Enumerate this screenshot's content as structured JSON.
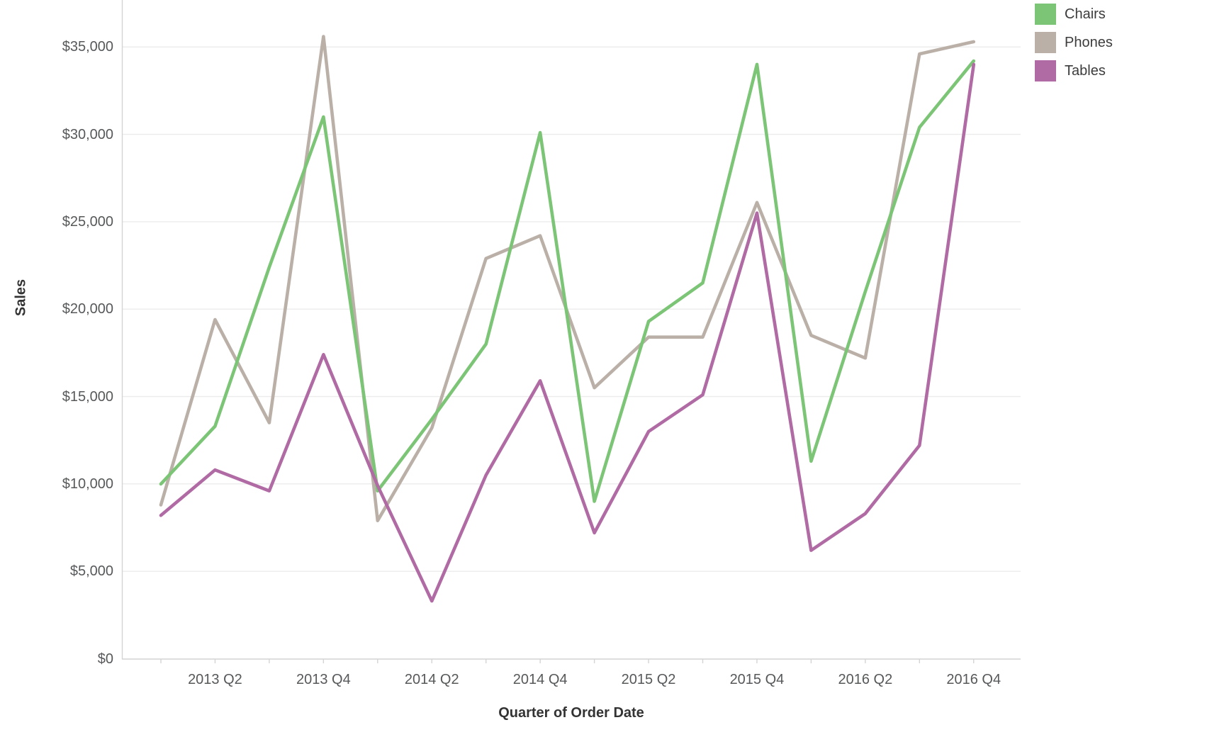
{
  "chart_data": {
    "type": "line",
    "title": "",
    "xlabel": "Quarter of Order Date",
    "ylabel": "Sales",
    "categories": [
      "2013 Q1",
      "2013 Q2",
      "2013 Q3",
      "2013 Q4",
      "2014 Q1",
      "2014 Q2",
      "2014 Q3",
      "2014 Q4",
      "2015 Q1",
      "2015 Q2",
      "2015 Q3",
      "2015 Q4",
      "2016 Q1",
      "2016 Q2",
      "2016 Q3",
      "2016 Q4"
    ],
    "x_tick_labels_shown": [
      "2013 Q2",
      "2013 Q4",
      "2014 Q2",
      "2014 Q4",
      "2015 Q2",
      "2015 Q4",
      "2016 Q2",
      "2016 Q4"
    ],
    "y_tick_labels": [
      "$0",
      "$5,000",
      "$10,000",
      "$15,000",
      "$20,000",
      "$25,000",
      "$30,000",
      "$35,000"
    ],
    "y_tick_values": [
      0,
      5000,
      10000,
      15000,
      20000,
      25000,
      30000,
      35000
    ],
    "ylim": [
      0,
      37600
    ],
    "grid": "horizontal",
    "legend_position": "top-right",
    "series": [
      {
        "name": "Chairs",
        "color": "#7cc576",
        "values": [
          10000,
          13300,
          22400,
          31000,
          9600,
          13700,
          18000,
          30100,
          9000,
          19300,
          21500,
          34000,
          11300,
          21000,
          30400,
          34200
        ]
      },
      {
        "name": "Phones",
        "color": "#bab0a7",
        "values": [
          8800,
          19400,
          13500,
          35600,
          7900,
          13200,
          22900,
          24200,
          15500,
          18400,
          18400,
          26100,
          18500,
          17200,
          34600,
          35300
        ]
      },
      {
        "name": "Tables",
        "color": "#b16ba4",
        "values": [
          8200,
          10800,
          9600,
          17400,
          9900,
          3300,
          10500,
          15900,
          7200,
          13000,
          15100,
          25500,
          6200,
          8300,
          12200,
          34000
        ]
      }
    ]
  },
  "axes": {
    "y_title": "Sales",
    "x_title": "Quarter of Order Date"
  },
  "legend": {
    "items": [
      {
        "label": "Chairs",
        "color": "#7cc576"
      },
      {
        "label": "Phones",
        "color": "#bab0a7"
      },
      {
        "label": "Tables",
        "color": "#b16ba4"
      }
    ]
  },
  "style": {
    "gridline_color": "#ececec",
    "axis_line_color": "#d4d4d4",
    "tick_label_color": "#56585a"
  }
}
